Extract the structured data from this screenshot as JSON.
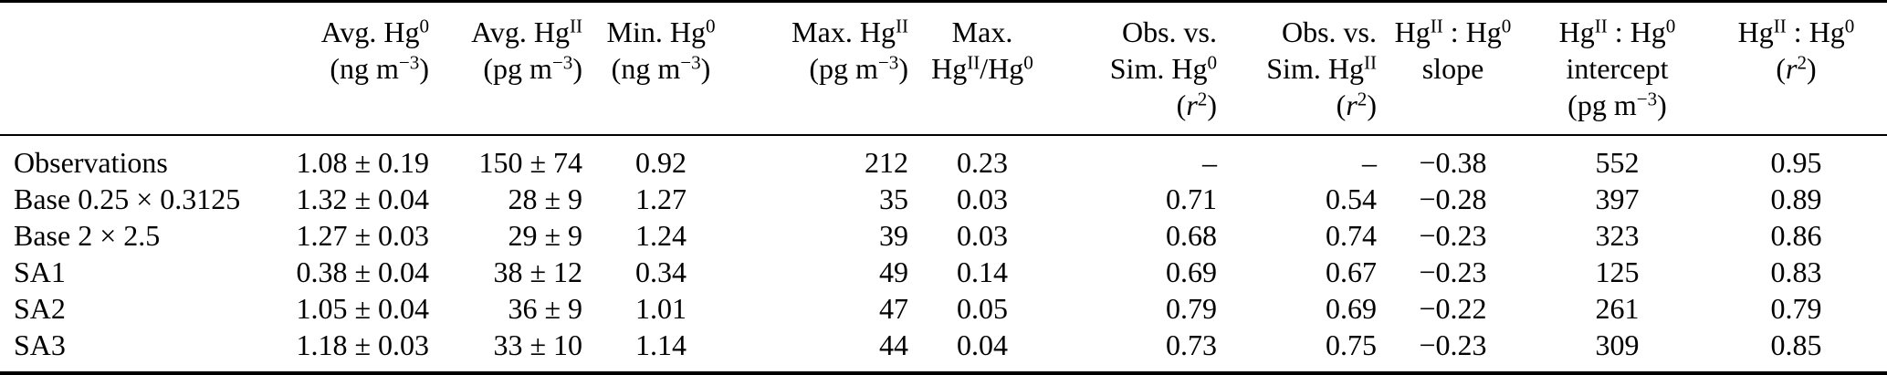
{
  "colors": {
    "text": "#000000",
    "background": "#ffffff",
    "rule": "#000000"
  },
  "table": {
    "columns": [
      {
        "id": "model",
        "header": []
      },
      {
        "id": "avg-hg0",
        "header": [
          [
            {
              "t": "text",
              "v": "Avg. Hg"
            },
            {
              "t": "sup",
              "v": "0"
            }
          ],
          [
            {
              "t": "text",
              "v": "(ng m"
            },
            {
              "t": "sup",
              "v": "−3"
            },
            {
              "t": "text",
              "v": ")"
            }
          ]
        ]
      },
      {
        "id": "avg-hg2",
        "header": [
          [
            {
              "t": "text",
              "v": "Avg. Hg"
            },
            {
              "t": "sup",
              "v": "II"
            }
          ],
          [
            {
              "t": "text",
              "v": "(pg m"
            },
            {
              "t": "sup",
              "v": "−3"
            },
            {
              "t": "text",
              "v": ")"
            }
          ]
        ]
      },
      {
        "id": "min-hg0",
        "header": [
          [
            {
              "t": "text",
              "v": "Min. Hg"
            },
            {
              "t": "sup",
              "v": "0"
            }
          ],
          [
            {
              "t": "text",
              "v": "(ng m"
            },
            {
              "t": "sup",
              "v": "−3"
            },
            {
              "t": "text",
              "v": ")"
            }
          ]
        ]
      },
      {
        "id": "max-hg2",
        "header": [
          [
            {
              "t": "text",
              "v": "Max. Hg"
            },
            {
              "t": "sup",
              "v": "II"
            }
          ],
          [
            {
              "t": "text",
              "v": "(pg m"
            },
            {
              "t": "sup",
              "v": "−3"
            },
            {
              "t": "text",
              "v": ")"
            }
          ]
        ]
      },
      {
        "id": "max-ratio",
        "header": [
          [
            {
              "t": "text",
              "v": "Max."
            }
          ],
          [
            {
              "t": "text",
              "v": "Hg"
            },
            {
              "t": "sup",
              "v": "II"
            },
            {
              "t": "text",
              "v": "/Hg"
            },
            {
              "t": "sup",
              "v": "0"
            }
          ]
        ]
      },
      {
        "id": "obs-vs-sim-hg0",
        "header": [
          [
            {
              "t": "text",
              "v": "Obs. vs."
            }
          ],
          [
            {
              "t": "text",
              "v": "Sim. Hg"
            },
            {
              "t": "sup",
              "v": "0"
            }
          ],
          [
            {
              "t": "text",
              "v": "("
            },
            {
              "t": "i",
              "v": "r"
            },
            {
              "t": "sup",
              "v": "2"
            },
            {
              "t": "text",
              "v": ")"
            }
          ]
        ]
      },
      {
        "id": "obs-vs-sim-hg2",
        "header": [
          [
            {
              "t": "text",
              "v": "Obs. vs."
            }
          ],
          [
            {
              "t": "text",
              "v": "Sim. Hg"
            },
            {
              "t": "sup",
              "v": "II"
            }
          ],
          [
            {
              "t": "text",
              "v": "("
            },
            {
              "t": "i",
              "v": "r"
            },
            {
              "t": "sup",
              "v": "2"
            },
            {
              "t": "text",
              "v": ")"
            }
          ]
        ]
      },
      {
        "id": "ratio-slope",
        "header": [
          [
            {
              "t": "text",
              "v": "Hg"
            },
            {
              "t": "sup",
              "v": "II"
            },
            {
              "t": "text",
              "v": " : Hg"
            },
            {
              "t": "sup",
              "v": "0"
            }
          ],
          [
            {
              "t": "text",
              "v": "slope"
            }
          ]
        ]
      },
      {
        "id": "ratio-intercept",
        "header": [
          [
            {
              "t": "text",
              "v": "Hg"
            },
            {
              "t": "sup",
              "v": "II"
            },
            {
              "t": "text",
              "v": " : Hg"
            },
            {
              "t": "sup",
              "v": "0"
            }
          ],
          [
            {
              "t": "text",
              "v": "intercept"
            }
          ],
          [
            {
              "t": "text",
              "v": "(pg m"
            },
            {
              "t": "sup",
              "v": "−3"
            },
            {
              "t": "text",
              "v": ")"
            }
          ]
        ]
      },
      {
        "id": "ratio-r2",
        "header": [
          [
            {
              "t": "text",
              "v": "Hg"
            },
            {
              "t": "sup",
              "v": "II"
            },
            {
              "t": "text",
              "v": " : Hg"
            },
            {
              "t": "sup",
              "v": "0"
            }
          ],
          [
            {
              "t": "text",
              "v": "("
            },
            {
              "t": "i",
              "v": "r"
            },
            {
              "t": "sup",
              "v": "2"
            },
            {
              "t": "text",
              "v": ")"
            }
          ]
        ]
      }
    ],
    "rows": [
      {
        "label": "Observations",
        "cells": [
          "1.08 ± 0.19",
          "150 ± 74",
          "0.92",
          "212",
          "0.23",
          "–",
          "–",
          "−0.38",
          "552",
          "0.95"
        ]
      },
      {
        "label": "Base 0.25 × 0.3125",
        "cells": [
          "1.32 ± 0.04",
          "28 ± 9",
          "1.27",
          "35",
          "0.03",
          "0.71",
          "0.54",
          "−0.28",
          "397",
          "0.89"
        ]
      },
      {
        "label": "Base 2 × 2.5",
        "cells": [
          "1.27 ± 0.03",
          "29 ± 9",
          "1.24",
          "39",
          "0.03",
          "0.68",
          "0.74",
          "−0.23",
          "323",
          "0.86"
        ]
      },
      {
        "label": "SA1",
        "cells": [
          "0.38 ± 0.04",
          "38 ± 12",
          "0.34",
          "49",
          "0.14",
          "0.69",
          "0.67",
          "−0.23",
          "125",
          "0.83"
        ]
      },
      {
        "label": "SA2",
        "cells": [
          "1.05 ± 0.04",
          "36 ± 9",
          "1.01",
          "47",
          "0.05",
          "0.79",
          "0.69",
          "−0.22",
          "261",
          "0.79"
        ]
      },
      {
        "label": "SA3",
        "cells": [
          "1.18 ± 0.03",
          "33 ± 10",
          "1.14",
          "44",
          "0.04",
          "0.73",
          "0.75",
          "−0.23",
          "309",
          "0.85"
        ]
      }
    ]
  }
}
